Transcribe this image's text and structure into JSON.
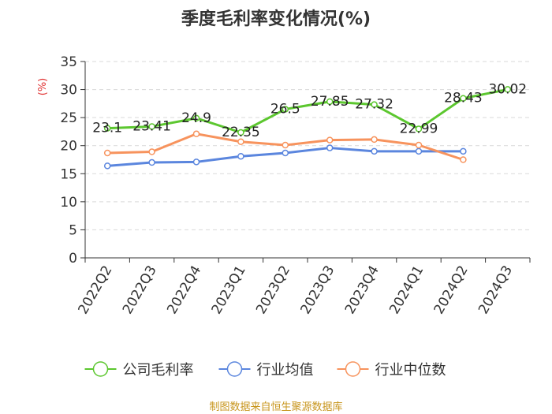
{
  "chart_data": {
    "type": "line",
    "title": "季度毛利率变化情况(%)",
    "ylabel": "(%)",
    "xlabel": "",
    "ylim": [
      0,
      35
    ],
    "yticks": [
      0,
      5,
      10,
      15,
      20,
      25,
      30,
      35
    ],
    "grid": true,
    "legend_position": "bottom",
    "categories": [
      "2022Q2",
      "2022Q3",
      "2022Q4",
      "2023Q1",
      "2023Q2",
      "2023Q3",
      "2023Q4",
      "2024Q1",
      "2024Q2",
      "2024Q3"
    ],
    "series": [
      {
        "name": "公司毛利率",
        "color": "#5cc72f",
        "show_labels": true,
        "labels": [
          "23.1",
          "23.41",
          "24.9",
          "22.35",
          "26.5",
          "27.85",
          "27.32",
          "22.99",
          "28.43",
          "30.02"
        ],
        "values": [
          23.1,
          23.41,
          24.9,
          22.35,
          26.5,
          27.85,
          27.32,
          22.99,
          28.43,
          30.02
        ]
      },
      {
        "name": "行业均值",
        "color": "#5b86de",
        "show_labels": false,
        "values": [
          16.4,
          17.0,
          17.1,
          18.1,
          18.7,
          19.6,
          19.0,
          19.0,
          19.0,
          null
        ]
      },
      {
        "name": "行业中位数",
        "color": "#f7935d",
        "show_labels": false,
        "values": [
          18.7,
          18.9,
          22.1,
          20.7,
          20.1,
          21.0,
          21.1,
          20.1,
          17.5,
          null
        ]
      }
    ]
  },
  "source_text": "制图数据来自恒生聚源数据库"
}
